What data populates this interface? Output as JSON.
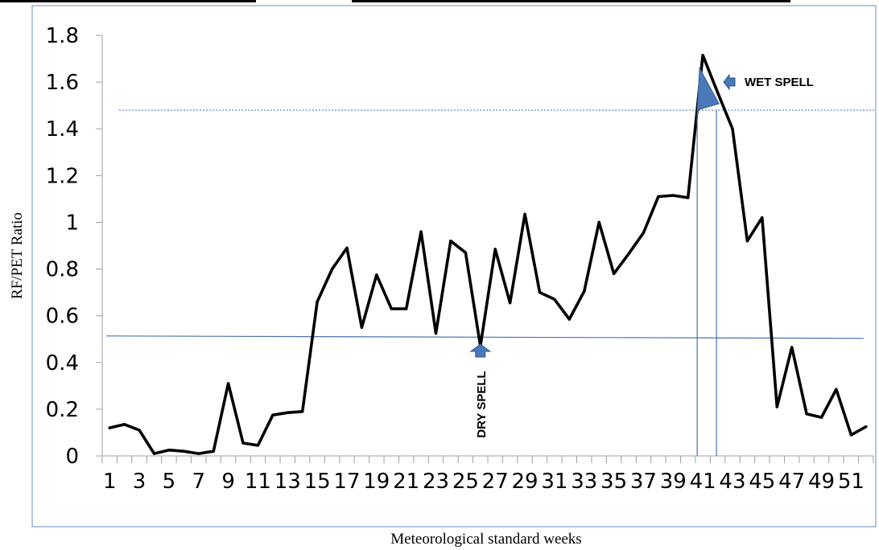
{
  "chart_data": {
    "type": "line",
    "xlabel": "Meteorological standard weeks",
    "ylabel": "RF/PET Ratio",
    "ylim": [
      0,
      1.8
    ],
    "y_ticks": [
      "0",
      "0.2",
      "0.4",
      "0.6",
      "0.8",
      "1",
      "1.2",
      "1.4",
      "1.6",
      "1.8"
    ],
    "x_tick_labels": [
      "1",
      "3",
      "5",
      "7",
      "9",
      "11",
      "13",
      "15",
      "17",
      "19",
      "21",
      "23",
      "25",
      "27",
      "29",
      "31",
      "33",
      "35",
      "37",
      "39",
      "41",
      "43",
      "45",
      "47",
      "49",
      "51"
    ],
    "x": [
      1,
      2,
      3,
      4,
      5,
      6,
      7,
      8,
      9,
      10,
      11,
      12,
      13,
      14,
      15,
      16,
      17,
      18,
      19,
      20,
      21,
      22,
      23,
      24,
      25,
      26,
      27,
      28,
      29,
      30,
      31,
      32,
      33,
      34,
      35,
      36,
      37,
      38,
      39,
      40,
      41,
      42,
      43,
      44,
      45,
      46,
      47,
      48,
      49,
      50,
      51,
      52
    ],
    "values": [
      0.12,
      0.135,
      0.11,
      0.01,
      0.025,
      0.02,
      0.01,
      0.02,
      0.31,
      0.055,
      0.045,
      0.175,
      0.185,
      0.19,
      0.66,
      0.8,
      0.89,
      0.55,
      0.775,
      0.63,
      0.63,
      0.96,
      0.525,
      0.92,
      0.87,
      0.47,
      0.885,
      0.655,
      1.035,
      0.7,
      0.67,
      0.585,
      0.705,
      1.0,
      0.78,
      0.865,
      0.955,
      1.11,
      1.115,
      1.105,
      1.715,
      1.555,
      1.4,
      0.92,
      1.02,
      0.21,
      0.465,
      0.18,
      0.165,
      0.285,
      0.09,
      0.125
    ],
    "grid": false,
    "thresholds": {
      "dry": 0.51,
      "wet": 1.48
    },
    "annotations": {
      "wet": "WET SPELL",
      "dry": "DRY SPELL"
    },
    "colors": {
      "line": "#000000",
      "threshold": "#4a72b0",
      "marker": "#4a78b8",
      "frame": "#6a8ec4"
    }
  }
}
